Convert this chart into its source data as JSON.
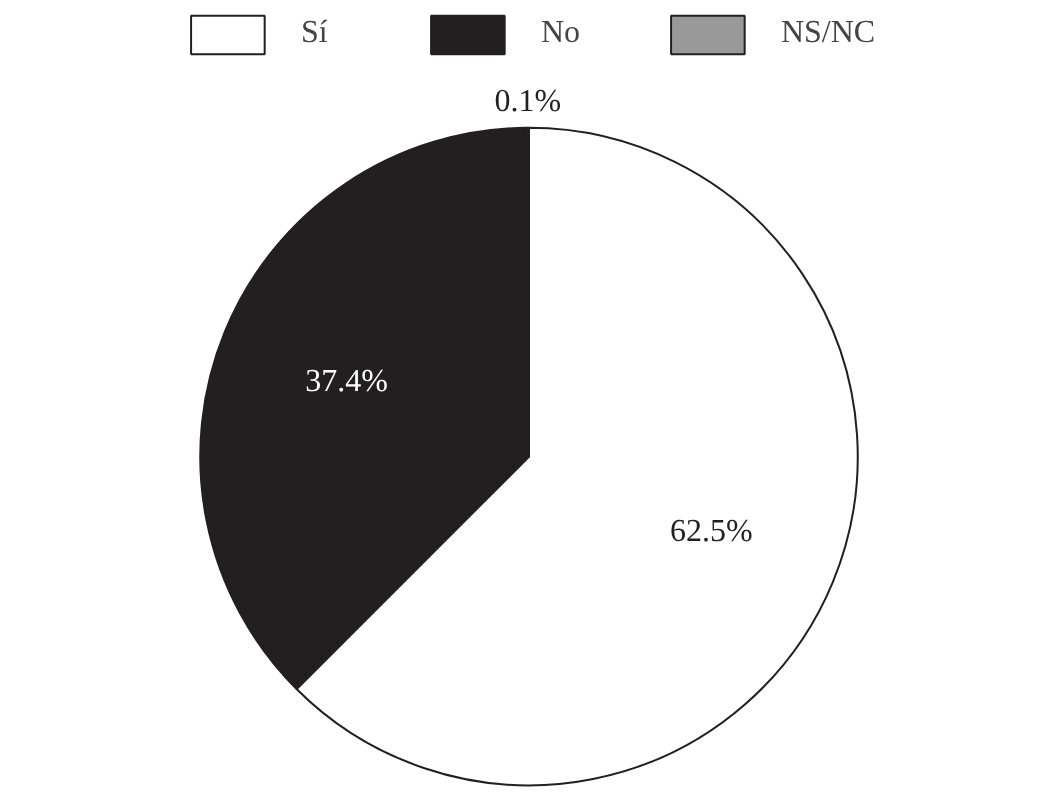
{
  "chart_data": {
    "type": "pie",
    "categories": [
      "Sí",
      "No",
      "NS/NC"
    ],
    "values": [
      62.5,
      37.4,
      0.1
    ],
    "colors": [
      "#ffffff",
      "#231f20",
      "#999999"
    ],
    "value_labels": [
      "62.5%",
      "37.4%",
      "0.1%"
    ],
    "legend": "top"
  }
}
